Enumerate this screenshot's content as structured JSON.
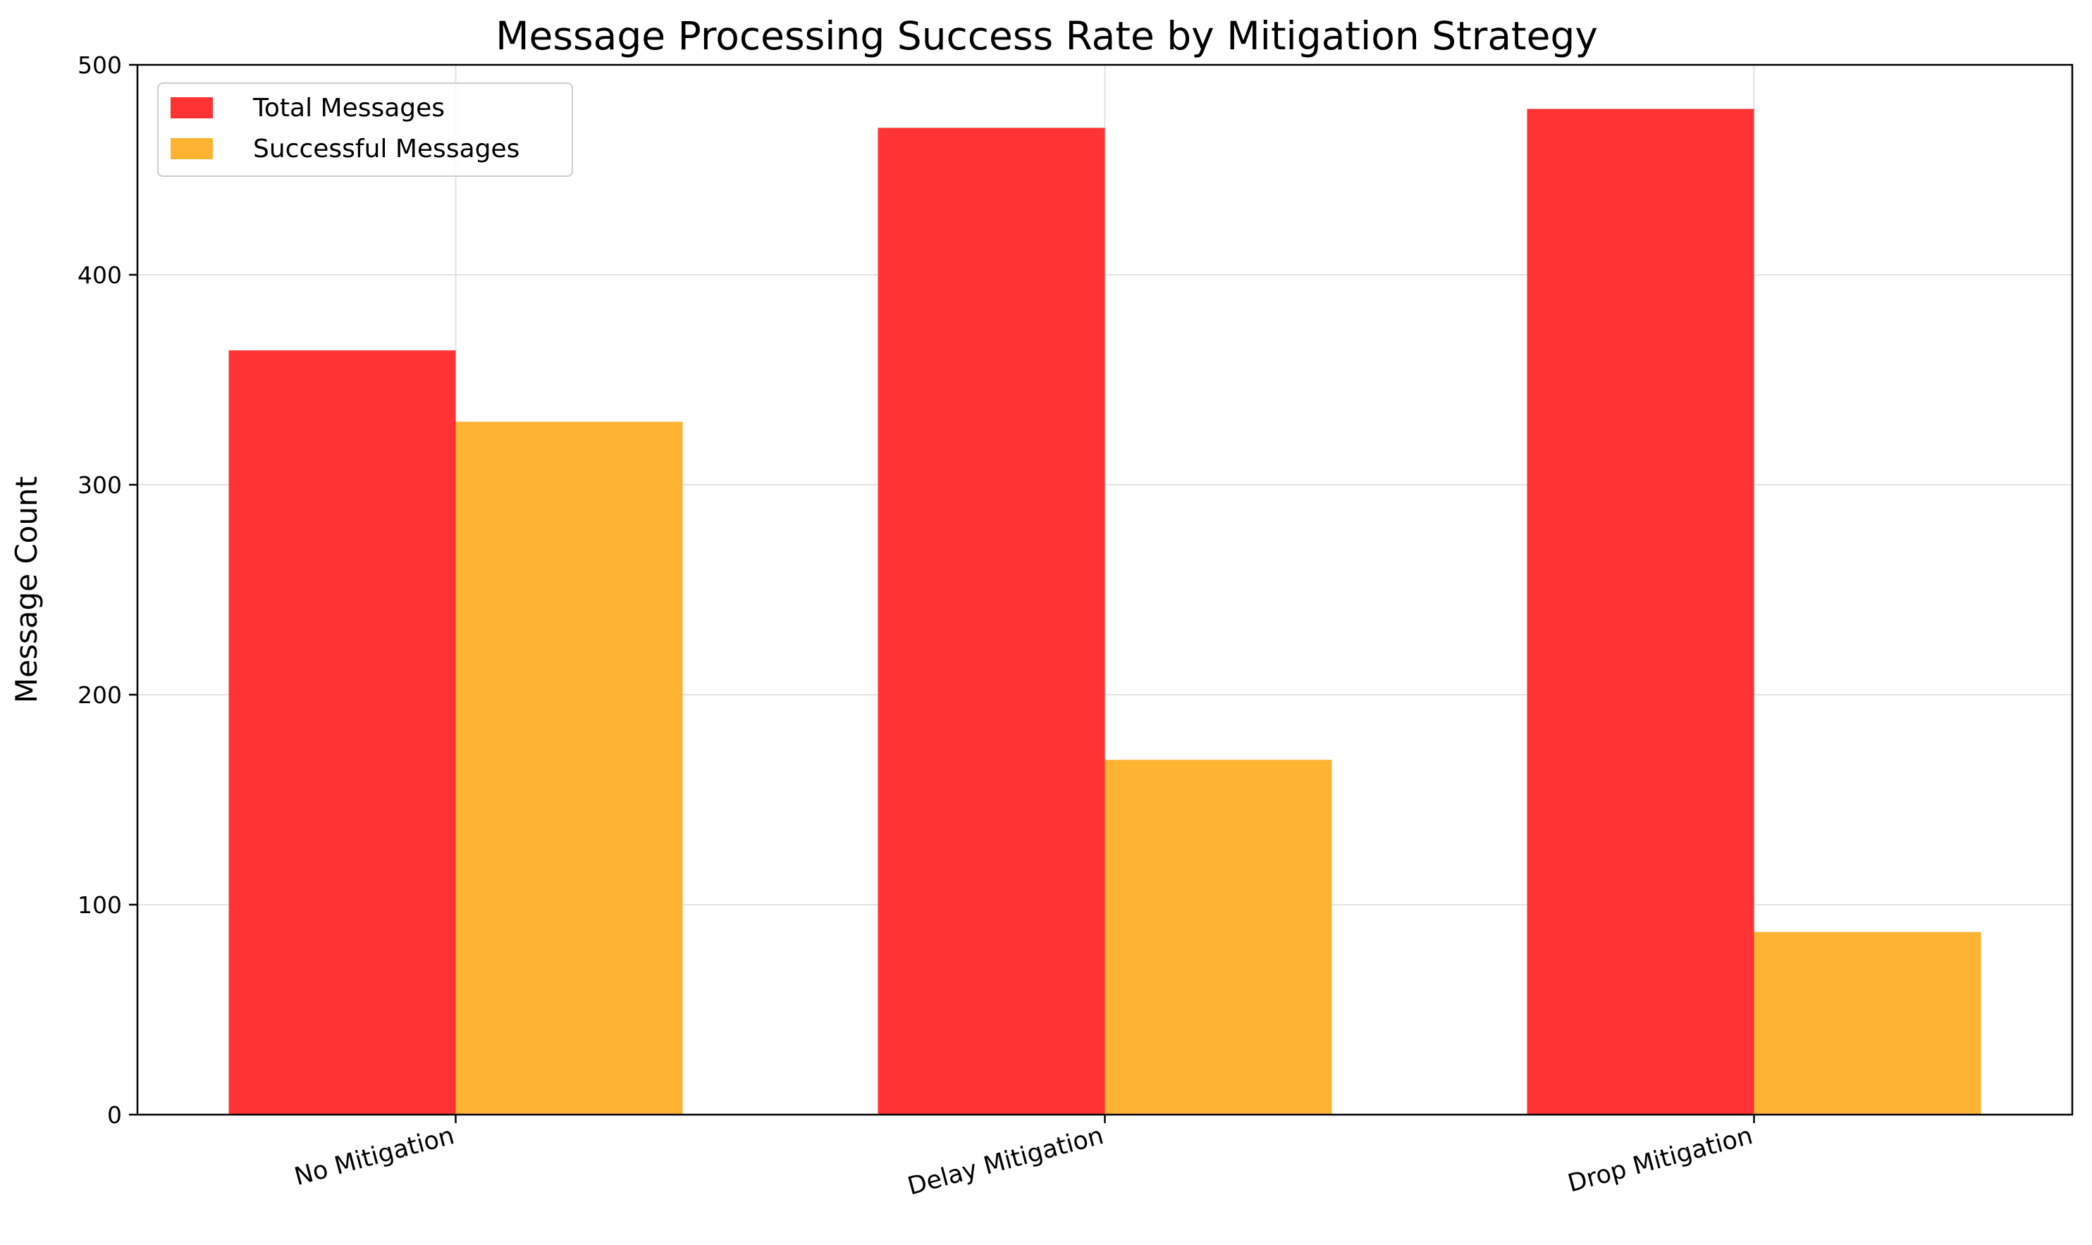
{
  "chart_data": {
    "type": "bar",
    "title": "Message Processing Success Rate by Mitigation Strategy",
    "xlabel": "",
    "ylabel": "Message Count",
    "categories": [
      "No Mitigation",
      "Delay Mitigation",
      "Drop Mitigation"
    ],
    "series": [
      {
        "name": "Total Messages",
        "color": "#ff3333",
        "values": [
          364,
          470,
          479
        ]
      },
      {
        "name": "Successful Messages",
        "color": "#ffb333",
        "values": [
          330,
          169,
          87
        ]
      }
    ],
    "ylim": [
      0,
      500
    ],
    "yticks": [
      0,
      100,
      200,
      300,
      400,
      500
    ],
    "grid": true,
    "legend_position": "top-left"
  }
}
